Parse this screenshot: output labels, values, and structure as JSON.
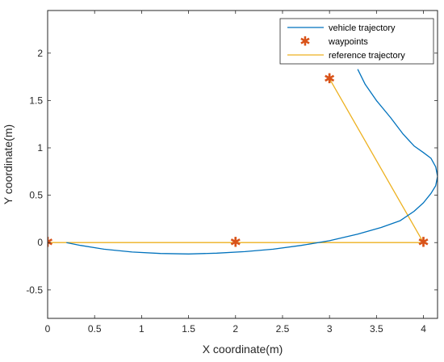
{
  "chart_data": {
    "type": "line",
    "xlabel": "X coordinate(m)",
    "ylabel": "Y coordinate(m)",
    "xlim": [
      0,
      4.15
    ],
    "ylim": [
      -0.8,
      2.45
    ],
    "x_ticks": [
      0,
      0.5,
      1,
      1.5,
      2,
      2.5,
      3,
      3.5,
      4
    ],
    "x_tick_labels": [
      "0",
      "0.5",
      "1",
      "1.5",
      "2",
      "2.5",
      "3",
      "3.5",
      "4"
    ],
    "y_ticks": [
      -0.5,
      0,
      0.5,
      1,
      1.5,
      2
    ],
    "y_tick_labels": [
      "-0.5",
      "0",
      "0.5",
      "1",
      "1.5",
      "2"
    ],
    "grid": false,
    "legend_position": "top-right",
    "series": [
      {
        "name": "vehicle trajectory",
        "style": "line",
        "color": "#0072BD",
        "x": [
          0.2,
          0.35,
          0.6,
          0.9,
          1.2,
          1.5,
          1.8,
          2.1,
          2.4,
          2.7,
          3.0,
          3.3,
          3.55,
          3.75,
          3.9,
          4.0,
          4.08,
          4.13,
          4.15,
          4.13,
          4.08,
          4.0,
          3.9,
          3.78,
          3.65,
          3.5,
          3.38,
          3.3
        ],
        "y": [
          0.0,
          -0.03,
          -0.07,
          -0.1,
          -0.115,
          -0.12,
          -0.112,
          -0.095,
          -0.07,
          -0.03,
          0.02,
          0.09,
          0.16,
          0.23,
          0.33,
          0.42,
          0.52,
          0.6,
          0.7,
          0.8,
          0.89,
          0.95,
          1.02,
          1.15,
          1.32,
          1.5,
          1.67,
          1.83
        ]
      },
      {
        "name": "waypoints",
        "style": "marker",
        "marker": "*",
        "color": "#D95319",
        "x": [
          0,
          2,
          3,
          4
        ],
        "y": [
          0,
          0,
          1.73,
          0
        ]
      },
      {
        "name": "reference trajectory",
        "style": "line",
        "color": "#EDB120",
        "x": [
          0,
          2,
          4,
          3
        ],
        "y": [
          0,
          0,
          0,
          1.73
        ]
      }
    ]
  }
}
